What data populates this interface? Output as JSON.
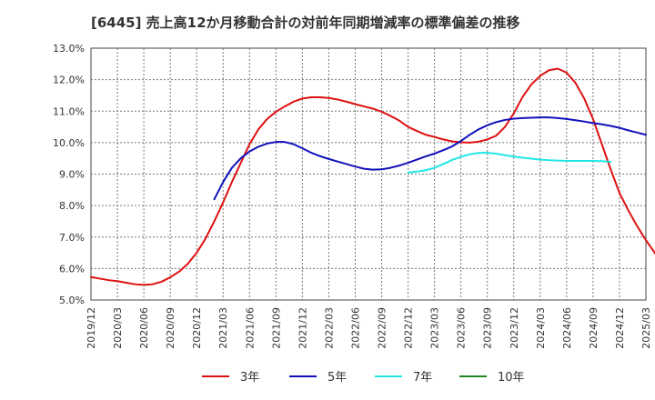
{
  "chart_data": {
    "type": "line",
    "title": "[6445]  売上高12か月移動合計の対前年同期増減率の標準偏差の推移",
    "xlabel": "",
    "ylabel": "",
    "ylim": [
      5.0,
      13.0
    ],
    "yticks": [
      "5.0%",
      "6.0%",
      "7.0%",
      "8.0%",
      "9.0%",
      "10.0%",
      "11.0%",
      "12.0%",
      "13.0%"
    ],
    "xticks": [
      "2019/12",
      "2020/03",
      "2020/06",
      "2020/09",
      "2020/12",
      "2021/03",
      "2021/06",
      "2021/09",
      "2021/12",
      "2022/03",
      "2022/06",
      "2022/09",
      "2022/12",
      "2023/03",
      "2023/06",
      "2023/09",
      "2023/12",
      "2024/03",
      "2024/06",
      "2024/09",
      "2024/12",
      "2025/03"
    ],
    "grid": true,
    "legend_position": "bottom",
    "series": [
      {
        "name": "3年",
        "color": "#dd1111",
        "start": "2019/12",
        "values": [
          5.73,
          5.68,
          5.63,
          5.6,
          5.55,
          5.5,
          5.48,
          5.5,
          5.58,
          5.72,
          5.9,
          6.15,
          6.5,
          6.95,
          7.5,
          8.1,
          8.75,
          9.35,
          9.95,
          10.42,
          10.75,
          10.98,
          11.15,
          11.3,
          11.4,
          11.44,
          11.44,
          11.42,
          11.37,
          11.3,
          11.22,
          11.15,
          11.08,
          10.98,
          10.85,
          10.7,
          10.5,
          10.37,
          10.25,
          10.18,
          10.1,
          10.04,
          10.01,
          10.0,
          10.03,
          10.1,
          10.22,
          10.5,
          10.93,
          11.45,
          11.85,
          12.12,
          12.3,
          12.35,
          12.22,
          11.9,
          11.4,
          10.75,
          9.95,
          9.15,
          8.4,
          7.85,
          7.35,
          6.9,
          6.5,
          6.18,
          5.92,
          5.75
        ]
      },
      {
        "name": "5年",
        "color": "#1111bb",
        "start": "2021/02",
        "values": [
          8.2,
          8.75,
          9.2,
          9.5,
          9.72,
          9.87,
          9.97,
          10.02,
          10.02,
          9.95,
          9.82,
          9.68,
          9.57,
          9.48,
          9.4,
          9.32,
          9.24,
          9.17,
          9.14,
          9.15,
          9.2,
          9.27,
          9.36,
          9.46,
          9.56,
          9.65,
          9.76,
          9.88,
          10.05,
          10.25,
          10.42,
          10.55,
          10.65,
          10.72,
          10.76,
          10.78,
          10.79,
          10.8,
          10.8,
          10.78,
          10.75,
          10.71,
          10.67,
          10.62,
          10.58,
          10.53,
          10.47,
          10.39,
          10.32,
          10.25
        ]
      },
      {
        "name": "7年",
        "color": "#22e6e6",
        "start": "2022/12",
        "values": [
          9.05,
          9.08,
          9.12,
          9.2,
          9.32,
          9.45,
          9.55,
          9.63,
          9.67,
          9.68,
          9.65,
          9.6,
          9.56,
          9.52,
          9.49,
          9.46,
          9.44,
          9.43,
          9.42,
          9.42,
          9.42,
          9.42,
          9.41,
          9.39
        ]
      },
      {
        "name": "10年",
        "color": "#228822",
        "start": "2024/12",
        "values": []
      }
    ]
  }
}
